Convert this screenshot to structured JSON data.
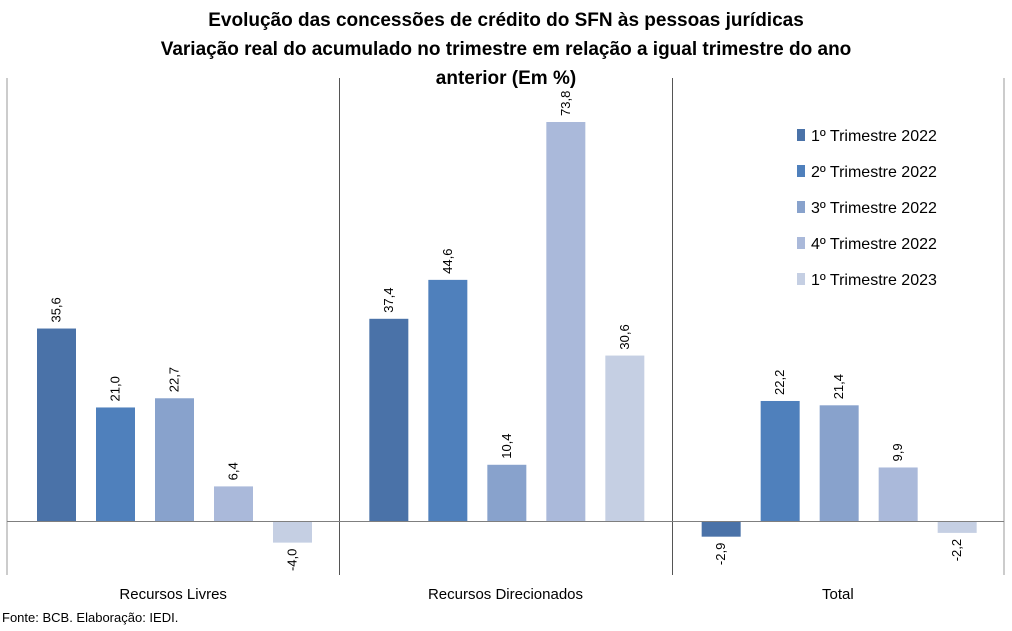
{
  "chart_data": {
    "type": "bar",
    "title_lines": [
      "Evolução das concessões de crédito do SFN às pessoas jurídicas",
      "Variação real do acumulado no trimestre em relação a igual trimestre do ano",
      "anterior (Em %)"
    ],
    "categories": [
      "Recursos Livres",
      "Recursos Direcionados",
      "Total"
    ],
    "series": [
      {
        "name": "1º Trimestre 2022",
        "color": "#4a72a8",
        "values": [
          35.6,
          37.4,
          -2.9
        ],
        "labels": [
          "35,6",
          "37,4",
          "-2,9"
        ]
      },
      {
        "name": "2º Trimestre 2022",
        "color": "#4f80bc",
        "values": [
          21.0,
          44.6,
          22.2
        ],
        "labels": [
          "21,0",
          "44,6",
          "22,2"
        ]
      },
      {
        "name": "3º Trimestre 2022",
        "color": "#88a2cc",
        "values": [
          22.7,
          10.4,
          21.4
        ],
        "labels": [
          "22,7",
          "10,4",
          "21,4"
        ]
      },
      {
        "name": "4º Trimestre 2022",
        "color": "#aab9da",
        "values": [
          6.4,
          73.8,
          9.9
        ],
        "labels": [
          "6,4",
          "73,8",
          "9,9"
        ]
      },
      {
        "name": "1º Trimestre 2023",
        "color": "#c5cfe3",
        "values": [
          -4.0,
          30.6,
          -2.2
        ],
        "labels": [
          "-4,0",
          "30,6",
          "-2,2"
        ]
      }
    ],
    "grid": false,
    "legend_position": "top-right"
  },
  "source": "Fonte: BCB. Elaboração: IEDI."
}
